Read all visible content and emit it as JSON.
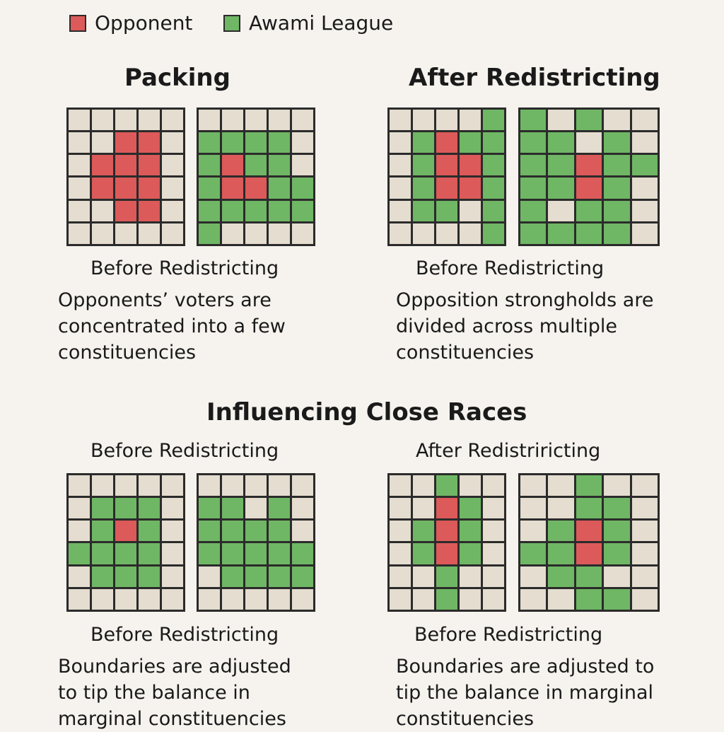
{
  "legend": {
    "opponent": {
      "label": "Opponent",
      "color": "#dd5a5a"
    },
    "awami": {
      "label": "Awami League",
      "color": "#6fb764"
    }
  },
  "empty_color": "#e4ddd0",
  "sections": {
    "packing": {
      "title": "Packing",
      "caption": "Before Redistricting",
      "description": "Opponents’ voters are concentrated into a few constituencies"
    },
    "after": {
      "title": "After Redistricting",
      "caption": "Before Redistricting",
      "description": "Opposition strongholds are divided across multiple constituencies"
    },
    "close_races": {
      "title": "Influencing Close Races"
    },
    "close_before": {
      "heading": "Before Redistricting",
      "caption": "Before Redistricting",
      "description": "Boundaries are adjusted to tip the balance in marginal constituencies"
    },
    "close_after": {
      "heading": "After Redistriricting",
      "caption": "Before Redistricting",
      "description": "Boundaries are adjusted to tip the balance in marginal constituencies"
    }
  },
  "grids": {
    "packing_left": [
      "EEEEE",
      "EERRE",
      "ERRRE",
      "ERRRE",
      "EERRE",
      "EEEEE"
    ],
    "packing_right": [
      "EEEEE",
      "GGGGE",
      "GRGGE",
      "GRRGG",
      "GGGGG",
      "GEEEE"
    ],
    "after_left": [
      "EEEEG",
      "EGRGG",
      "EGRRG",
      "EGRRG",
      "EGGEG",
      "EEEEG"
    ],
    "after_right": [
      "GEGEE",
      "GGEGE",
      "GGRGG",
      "GGRGE",
      "GEGGE",
      "GGGGE"
    ],
    "close_before_left": [
      "EEEEE",
      "EGGGE",
      "EGRGE",
      "GGGGE",
      "EGGGE",
      "EEEEE"
    ],
    "close_before_right": [
      "EEEEE",
      "GGEGE",
      "GGGGE",
      "GGGGG",
      "EGGGG",
      "EEEEE"
    ],
    "close_after_left": [
      "EEGEE",
      "EERGE",
      "EGRGE",
      "EGRGE",
      "EEGEE",
      "EEGEE"
    ],
    "close_after_right": [
      "EEGEE",
      "EEGGE",
      "EGRGE",
      "GGRGE",
      "EGGEE",
      "EEGGE"
    ]
  }
}
